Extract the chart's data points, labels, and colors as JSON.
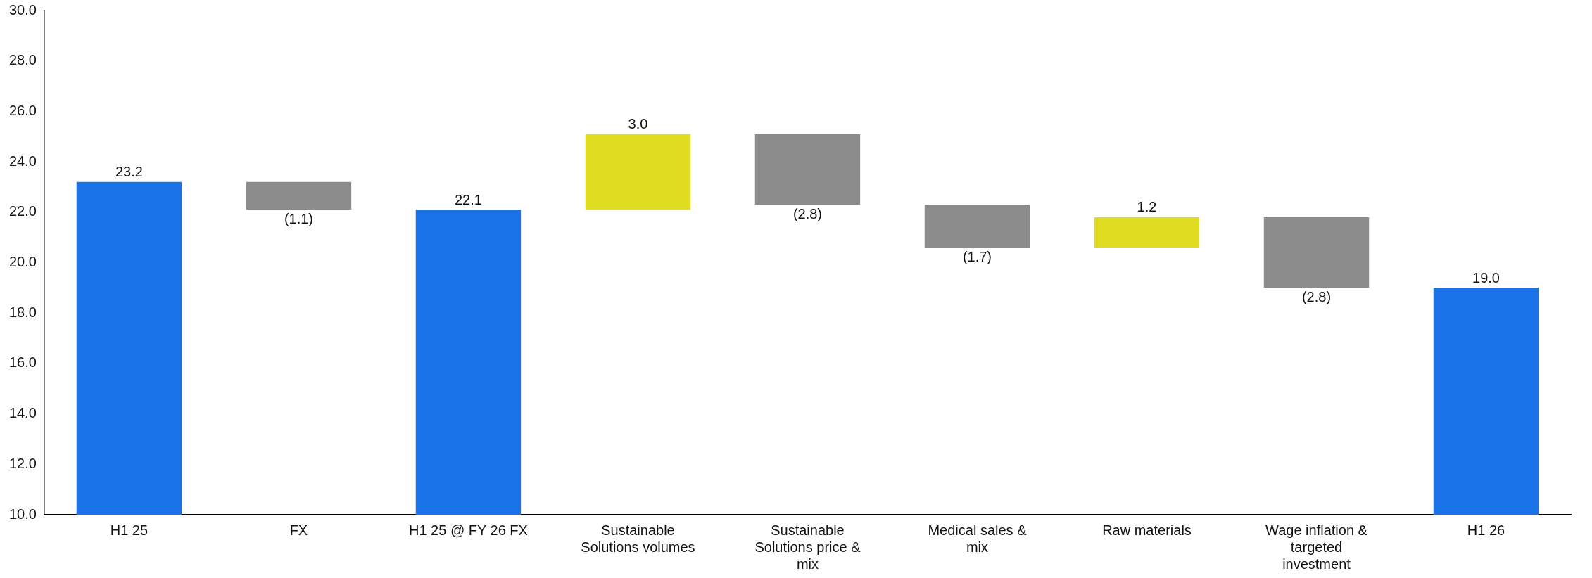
{
  "chart_data": {
    "type": "bar",
    "categories": [
      "H1 25",
      "FX",
      "H1 25 @ FY 26 FX",
      "Sustainable Solutions volumes",
      "Sustainable Solutions price & mix",
      "Medical sales & mix",
      "Raw materials",
      "Wage inflation & targeted investment",
      "H1 26"
    ],
    "values": [
      23.2,
      -1.1,
      22.1,
      3.0,
      -2.8,
      -1.7,
      1.2,
      -2.8,
      19.0
    ],
    "base": [
      null,
      23.2,
      null,
      22.1,
      25.1,
      22.3,
      20.6,
      21.8,
      null
    ],
    "colors": [
      "#1a73e8",
      "#8c8c8c",
      "#1a73e8",
      "#dfdc22",
      "#8c8c8c",
      "#8c8c8c",
      "#dfdc22",
      "#8c8c8c",
      "#1a73e8"
    ],
    "value_labels": [
      "23.2",
      "(1.1)",
      "22.1",
      "3.0",
      "(2.8)",
      "(1.7)",
      "1.2",
      "(2.8)",
      "19.0"
    ],
    "ylim": [
      10,
      30
    ],
    "yticks": [
      {
        "value": 10,
        "label": "10.0"
      },
      {
        "value": 12,
        "label": "12.0"
      },
      {
        "value": 14,
        "label": "14.0"
      },
      {
        "value": 16,
        "label": "16.0"
      },
      {
        "value": 18,
        "label": "18.0"
      },
      {
        "value": 20,
        "label": "20.0"
      },
      {
        "value": 22,
        "label": "22.0"
      },
      {
        "value": 24,
        "label": "24.0"
      },
      {
        "value": 26,
        "label": "26.0"
      },
      {
        "value": 28,
        "label": "28.0"
      },
      {
        "value": 30,
        "label": "30.0"
      }
    ],
    "grid": false,
    "legend": false
  }
}
